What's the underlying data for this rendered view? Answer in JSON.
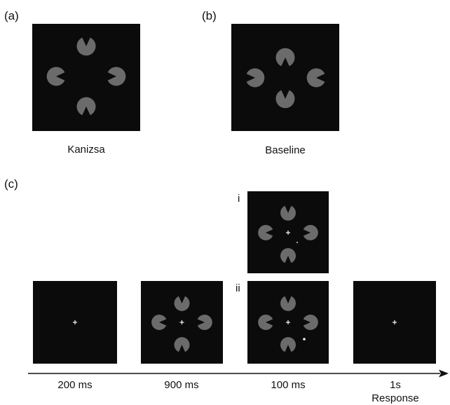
{
  "figure_labels": {
    "a": "(a)",
    "b": "(b)",
    "c": "(c)"
  },
  "captions": {
    "kanizsa": "Kanizsa",
    "baseline": "Baseline"
  },
  "trial_variants": {
    "i": "i",
    "ii": "ii"
  },
  "timeline": {
    "fixation": "200 ms",
    "inducers": "900 ms",
    "probe": "100 ms",
    "response_time": "1s",
    "response_label": "Response"
  },
  "colors": {
    "panel": "#0b0b0b",
    "inducer": "#6b6b6b",
    "fixation": "#ffffff"
  }
}
